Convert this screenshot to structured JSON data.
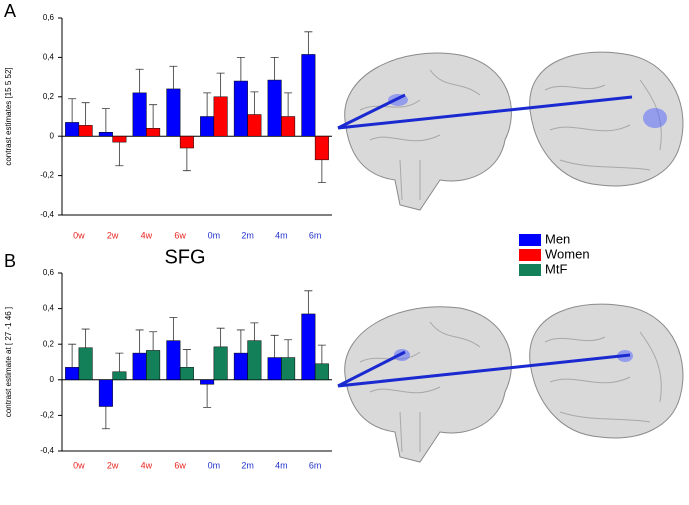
{
  "panel_labels": [
    "A",
    "B"
  ],
  "chart_data": [
    {
      "type": "bar",
      "y_label": "contrast estimates [15 5 52]",
      "categories": [
        "0w",
        "2w",
        "4w",
        "6w",
        "0m",
        "2m",
        "4m",
        "6m"
      ],
      "category_colors": [
        "#e8231f",
        "#e8231f",
        "#e8231f",
        "#e8231f",
        "#2233cc",
        "#2233cc",
        "#2233cc",
        "#2233cc"
      ],
      "series": [
        {
          "name": "Men",
          "color": "#0000ff",
          "values": [
            0.07,
            0.02,
            0.22,
            0.24,
            0.1,
            0.28,
            0.285,
            0.415
          ],
          "errors": [
            0.12,
            0.12,
            0.12,
            0.115,
            0.12,
            0.12,
            0.115,
            0.115
          ]
        },
        {
          "name": "Women",
          "color": "#ff0000",
          "values": [
            0.055,
            -0.03,
            0.04,
            -0.06,
            0.2,
            0.11,
            0.1,
            -0.12
          ],
          "errors": [
            0.115,
            0.12,
            0.12,
            0.115,
            0.12,
            0.115,
            0.12,
            0.115
          ]
        }
      ],
      "ylim": [
        -0.4,
        0.6
      ],
      "yticks": [
        {
          "value": -0.4,
          "label": "-0,4"
        },
        {
          "value": -0.2,
          "label": "-0,2"
        },
        0,
        {
          "value": 0.2,
          "label": "0,2"
        },
        {
          "value": 0.4,
          "label": "0,4"
        },
        {
          "value": 0.6,
          "label": "0,6"
        }
      ]
    },
    {
      "type": "bar",
      "title": "SFG",
      "y_label": "contrast estimate at [ 27 -1 46 ]",
      "categories": [
        "0w",
        "2w",
        "4w",
        "6w",
        "0m",
        "2m",
        "4m",
        "6m"
      ],
      "category_colors": [
        "#e8231f",
        "#e8231f",
        "#e8231f",
        "#e8231f",
        "#2233cc",
        "#2233cc",
        "#2233cc",
        "#2233cc"
      ],
      "series": [
        {
          "name": "Men",
          "color": "#0000ff",
          "values": [
            0.07,
            -0.15,
            0.15,
            0.22,
            -0.025,
            0.15,
            0.125,
            0.37
          ],
          "errors": [
            0.13,
            0.125,
            0.13,
            0.13,
            0.13,
            0.13,
            0.125,
            0.13
          ]
        },
        {
          "name": "MtF",
          "color": "#13805a",
          "values": [
            0.18,
            0.045,
            0.165,
            0.07,
            0.185,
            0.22,
            0.125,
            0.09
          ],
          "errors": [
            0.105,
            0.105,
            0.105,
            0.1,
            0.105,
            0.1,
            0.1,
            0.105
          ]
        }
      ],
      "ylim": [
        -0.4,
        0.6
      ],
      "yticks": [
        {
          "value": -0.4,
          "label": "-0,4"
        },
        {
          "value": -0.2,
          "label": "-0,2"
        },
        0,
        {
          "value": 0.2,
          "label": "0,2"
        },
        {
          "value": 0.4,
          "label": "0,4"
        },
        {
          "value": 0.6,
          "label": "0,6"
        }
      ]
    }
  ]
}
